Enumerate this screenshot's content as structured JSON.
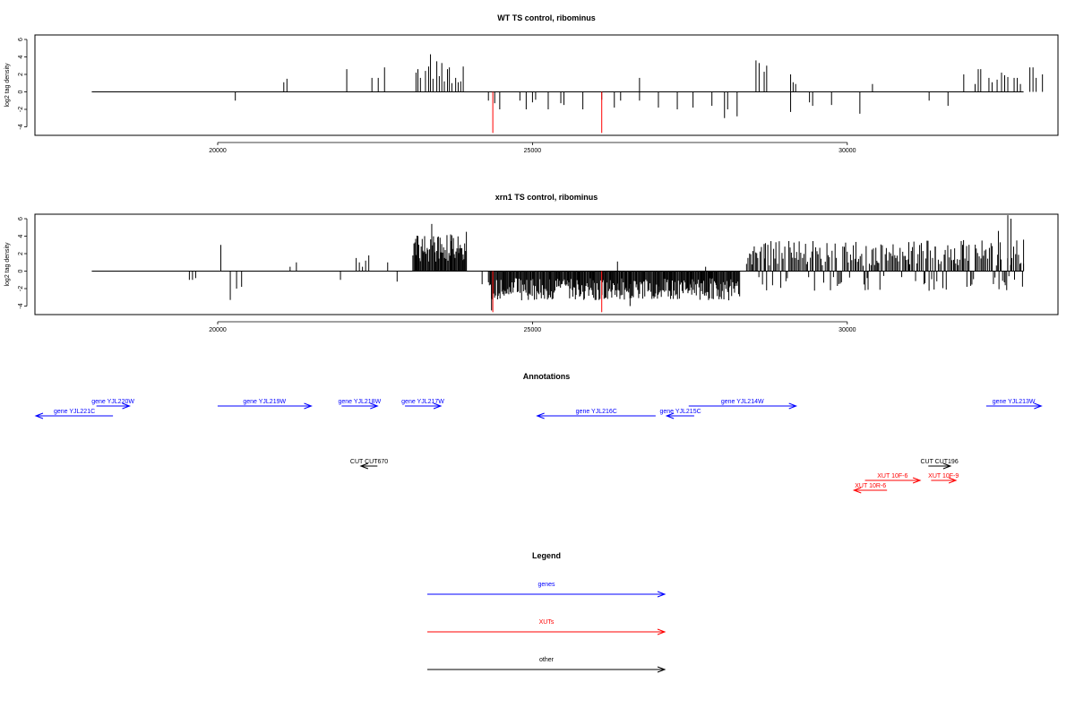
{
  "chart_data": [
    {
      "type": "bar",
      "title": "WT TS control, ribominus",
      "xlabel": "",
      "ylabel": "log2 tag density",
      "xlim": [
        17600,
        33300
      ],
      "ylim": [
        -5,
        6.6
      ],
      "xticks": [
        20000,
        25000,
        30000
      ],
      "yticks": [
        -4,
        -2,
        0,
        2,
        4,
        6
      ],
      "baseline": [
        18000,
        32800
      ],
      "values_positive": [
        [
          21050,
          1.1
        ],
        [
          21100,
          1.5
        ],
        [
          22050,
          2.6
        ],
        [
          22450,
          1.6
        ],
        [
          22550,
          1.6
        ],
        [
          22650,
          2.8
        ],
        [
          23150,
          2.2
        ],
        [
          23180,
          2.6
        ],
        [
          23220,
          1.6
        ],
        [
          23300,
          2.4
        ],
        [
          23350,
          2.9
        ],
        [
          23380,
          4.3
        ],
        [
          23420,
          1.5
        ],
        [
          23480,
          3.5
        ],
        [
          23520,
          1.8
        ],
        [
          23560,
          3.3
        ],
        [
          23600,
          1.2
        ],
        [
          23650,
          2.6
        ],
        [
          23680,
          2.8
        ],
        [
          23720,
          1.0
        ],
        [
          23780,
          1.6
        ],
        [
          23820,
          1.1
        ],
        [
          23860,
          1.2
        ],
        [
          23900,
          2.9
        ],
        [
          26700,
          1.6
        ],
        [
          28550,
          3.6
        ],
        [
          28600,
          3.3
        ],
        [
          28680,
          2.3
        ],
        [
          28720,
          3.0
        ],
        [
          29100,
          2.0
        ],
        [
          29140,
          1.1
        ],
        [
          29180,
          0.9
        ],
        [
          30400,
          0.9
        ],
        [
          31850,
          2.0
        ],
        [
          32030,
          0.9
        ],
        [
          32080,
          2.6
        ],
        [
          32120,
          2.6
        ],
        [
          32250,
          1.6
        ],
        [
          32300,
          1.1
        ],
        [
          32380,
          1.4
        ],
        [
          32450,
          2.2
        ],
        [
          32500,
          1.9
        ],
        [
          32550,
          1.7
        ],
        [
          32650,
          1.6
        ],
        [
          32700,
          1.6
        ],
        [
          32750,
          0.9
        ],
        [
          32900,
          2.8
        ],
        [
          32950,
          2.8
        ],
        [
          33000,
          1.6
        ],
        [
          33100,
          2.0
        ]
      ],
      "values_negative": [
        [
          20280,
          -1.0
        ],
        [
          24300,
          -1.0
        ],
        [
          24400,
          -1.3
        ],
        [
          24480,
          -2.0
        ],
        [
          24800,
          -1.0
        ],
        [
          24900,
          -2.0
        ],
        [
          25000,
          -1.2
        ],
        [
          25050,
          -0.9
        ],
        [
          25250,
          -2.0
        ],
        [
          25450,
          -1.3
        ],
        [
          25500,
          -1.5
        ],
        [
          25800,
          -2.0
        ],
        [
          26100,
          -0.9
        ],
        [
          26300,
          -1.8
        ],
        [
          26400,
          -1.0
        ],
        [
          26700,
          -1.0
        ],
        [
          27000,
          -1.8
        ],
        [
          27300,
          -2.0
        ],
        [
          27550,
          -1.8
        ],
        [
          27850,
          -1.6
        ],
        [
          28050,
          -3.0
        ],
        [
          28100,
          -2.0
        ],
        [
          28250,
          -2.8
        ],
        [
          29100,
          -2.3
        ],
        [
          29400,
          -1.2
        ],
        [
          29450,
          -1.6
        ],
        [
          29750,
          -1.5
        ],
        [
          30200,
          -2.5
        ],
        [
          31300,
          -1.0
        ],
        [
          31600,
          -1.6
        ]
      ],
      "highlighted": [
        [
          24370,
          -4.7
        ],
        [
          26100,
          -4.7
        ]
      ]
    },
    {
      "type": "bar",
      "title": "xrn1 TS control, ribominus",
      "xlabel": "",
      "ylabel": "log2 tag density",
      "xlim": [
        17600,
        33300
      ],
      "ylim": [
        -5,
        6.6
      ],
      "xticks": [
        20000,
        25000,
        30000
      ],
      "yticks": [
        -4,
        -2,
        0,
        2,
        4,
        6
      ],
      "baseline": [
        18000,
        32800
      ],
      "dense_ranges": [
        [
          23100,
          23950,
          "pos"
        ],
        [
          24300,
          28300,
          "neg"
        ],
        [
          28400,
          32800,
          "mixed"
        ]
      ],
      "values_positive": [
        [
          20050,
          3.0
        ],
        [
          21150,
          0.5
        ],
        [
          21250,
          1.0
        ],
        [
          22200,
          1.5
        ],
        [
          22250,
          1.0
        ],
        [
          22300,
          0.5
        ],
        [
          22350,
          1.2
        ],
        [
          22400,
          1.8
        ],
        [
          22700,
          1.0
        ],
        [
          26350,
          1.1
        ],
        [
          27750,
          0.5
        ]
      ],
      "values_negative": [
        [
          19550,
          -1.0
        ],
        [
          19600,
          -1.0
        ],
        [
          19650,
          -0.8
        ],
        [
          20200,
          -3.3
        ],
        [
          20300,
          -2.0
        ],
        [
          20380,
          -1.8
        ],
        [
          21950,
          -1.0
        ],
        [
          22850,
          -1.2
        ],
        [
          24200,
          -1.5
        ],
        [
          24350,
          -4.5
        ],
        [
          24450,
          -2.5
        ],
        [
          24550,
          -2.8
        ],
        [
          26550,
          -4.0
        ],
        [
          26600,
          -3.0
        ],
        [
          26850,
          -2.2
        ],
        [
          27000,
          -2.6
        ],
        [
          27200,
          -2.0
        ],
        [
          27500,
          -1.6
        ],
        [
          27800,
          -1.8
        ],
        [
          28100,
          -2.4
        ],
        [
          31900,
          -1.8
        ]
      ],
      "highlighted": [
        [
          24370,
          -4.7
        ],
        [
          26100,
          -4.7
        ]
      ]
    }
  ],
  "annotations": {
    "title": "Annotations",
    "genes": [
      {
        "label": "gene YJL221C",
        "from": 18000,
        "to": 19400,
        "row": 1,
        "dir": "left"
      },
      {
        "label": "gene YJL220W",
        "from": 19100,
        "to": 19700,
        "row": 0,
        "dir": "right"
      },
      {
        "label": "gene YJL219W",
        "from": 21300,
        "to": 23000,
        "row": 0,
        "dir": "right"
      },
      {
        "label": "gene YJL218W",
        "from": 23550,
        "to": 24200,
        "row": 0,
        "dir": "right"
      },
      {
        "label": "gene YJL217W",
        "from": 24700,
        "to": 25350,
        "row": 0,
        "dir": "right"
      },
      {
        "label": "gene YJL216C",
        "from": 27100,
        "to": 29250,
        "row": 1,
        "dir": "left"
      },
      {
        "label": "gene YJL215C",
        "from": 29450,
        "to": 29950,
        "row": 1,
        "dir": "left"
      },
      {
        "label": "gene YJL214W",
        "from": 29850,
        "to": 31800,
        "row": 0,
        "dir": "right"
      },
      {
        "label": "gene YJL213W",
        "from": 35250,
        "to": 36250,
        "row": 0,
        "dir": "right"
      }
    ],
    "cuts": [
      {
        "label": "CUT CUT670",
        "from": 23900,
        "to": 24200,
        "row": 0,
        "dir": "left"
      },
      {
        "label": "CUT CUT196",
        "from": 34200,
        "to": 34600,
        "row": 0,
        "dir": "right"
      }
    ],
    "xuts": [
      {
        "label": "XUT 10F-6",
        "from": 33050,
        "to": 34050,
        "row": 1,
        "dir": "right"
      },
      {
        "label": "XUT 10F-9",
        "from": 34250,
        "to": 34700,
        "row": 1,
        "dir": "right"
      },
      {
        "label": "XUT 10R-6",
        "from": 32850,
        "to": 33450,
        "row": 2,
        "dir": "left"
      }
    ]
  },
  "legend": {
    "title": "Legend",
    "items": [
      {
        "label": "genes",
        "color": "#0000ff"
      },
      {
        "label": "XUTs",
        "color": "#ff0000"
      },
      {
        "label": "other",
        "color": "#000000"
      }
    ]
  },
  "colors": {
    "gene": "#0000ff",
    "xut": "#ff0000",
    "other": "#000000",
    "highlight": "#ff0000",
    "bar": "#000000"
  }
}
